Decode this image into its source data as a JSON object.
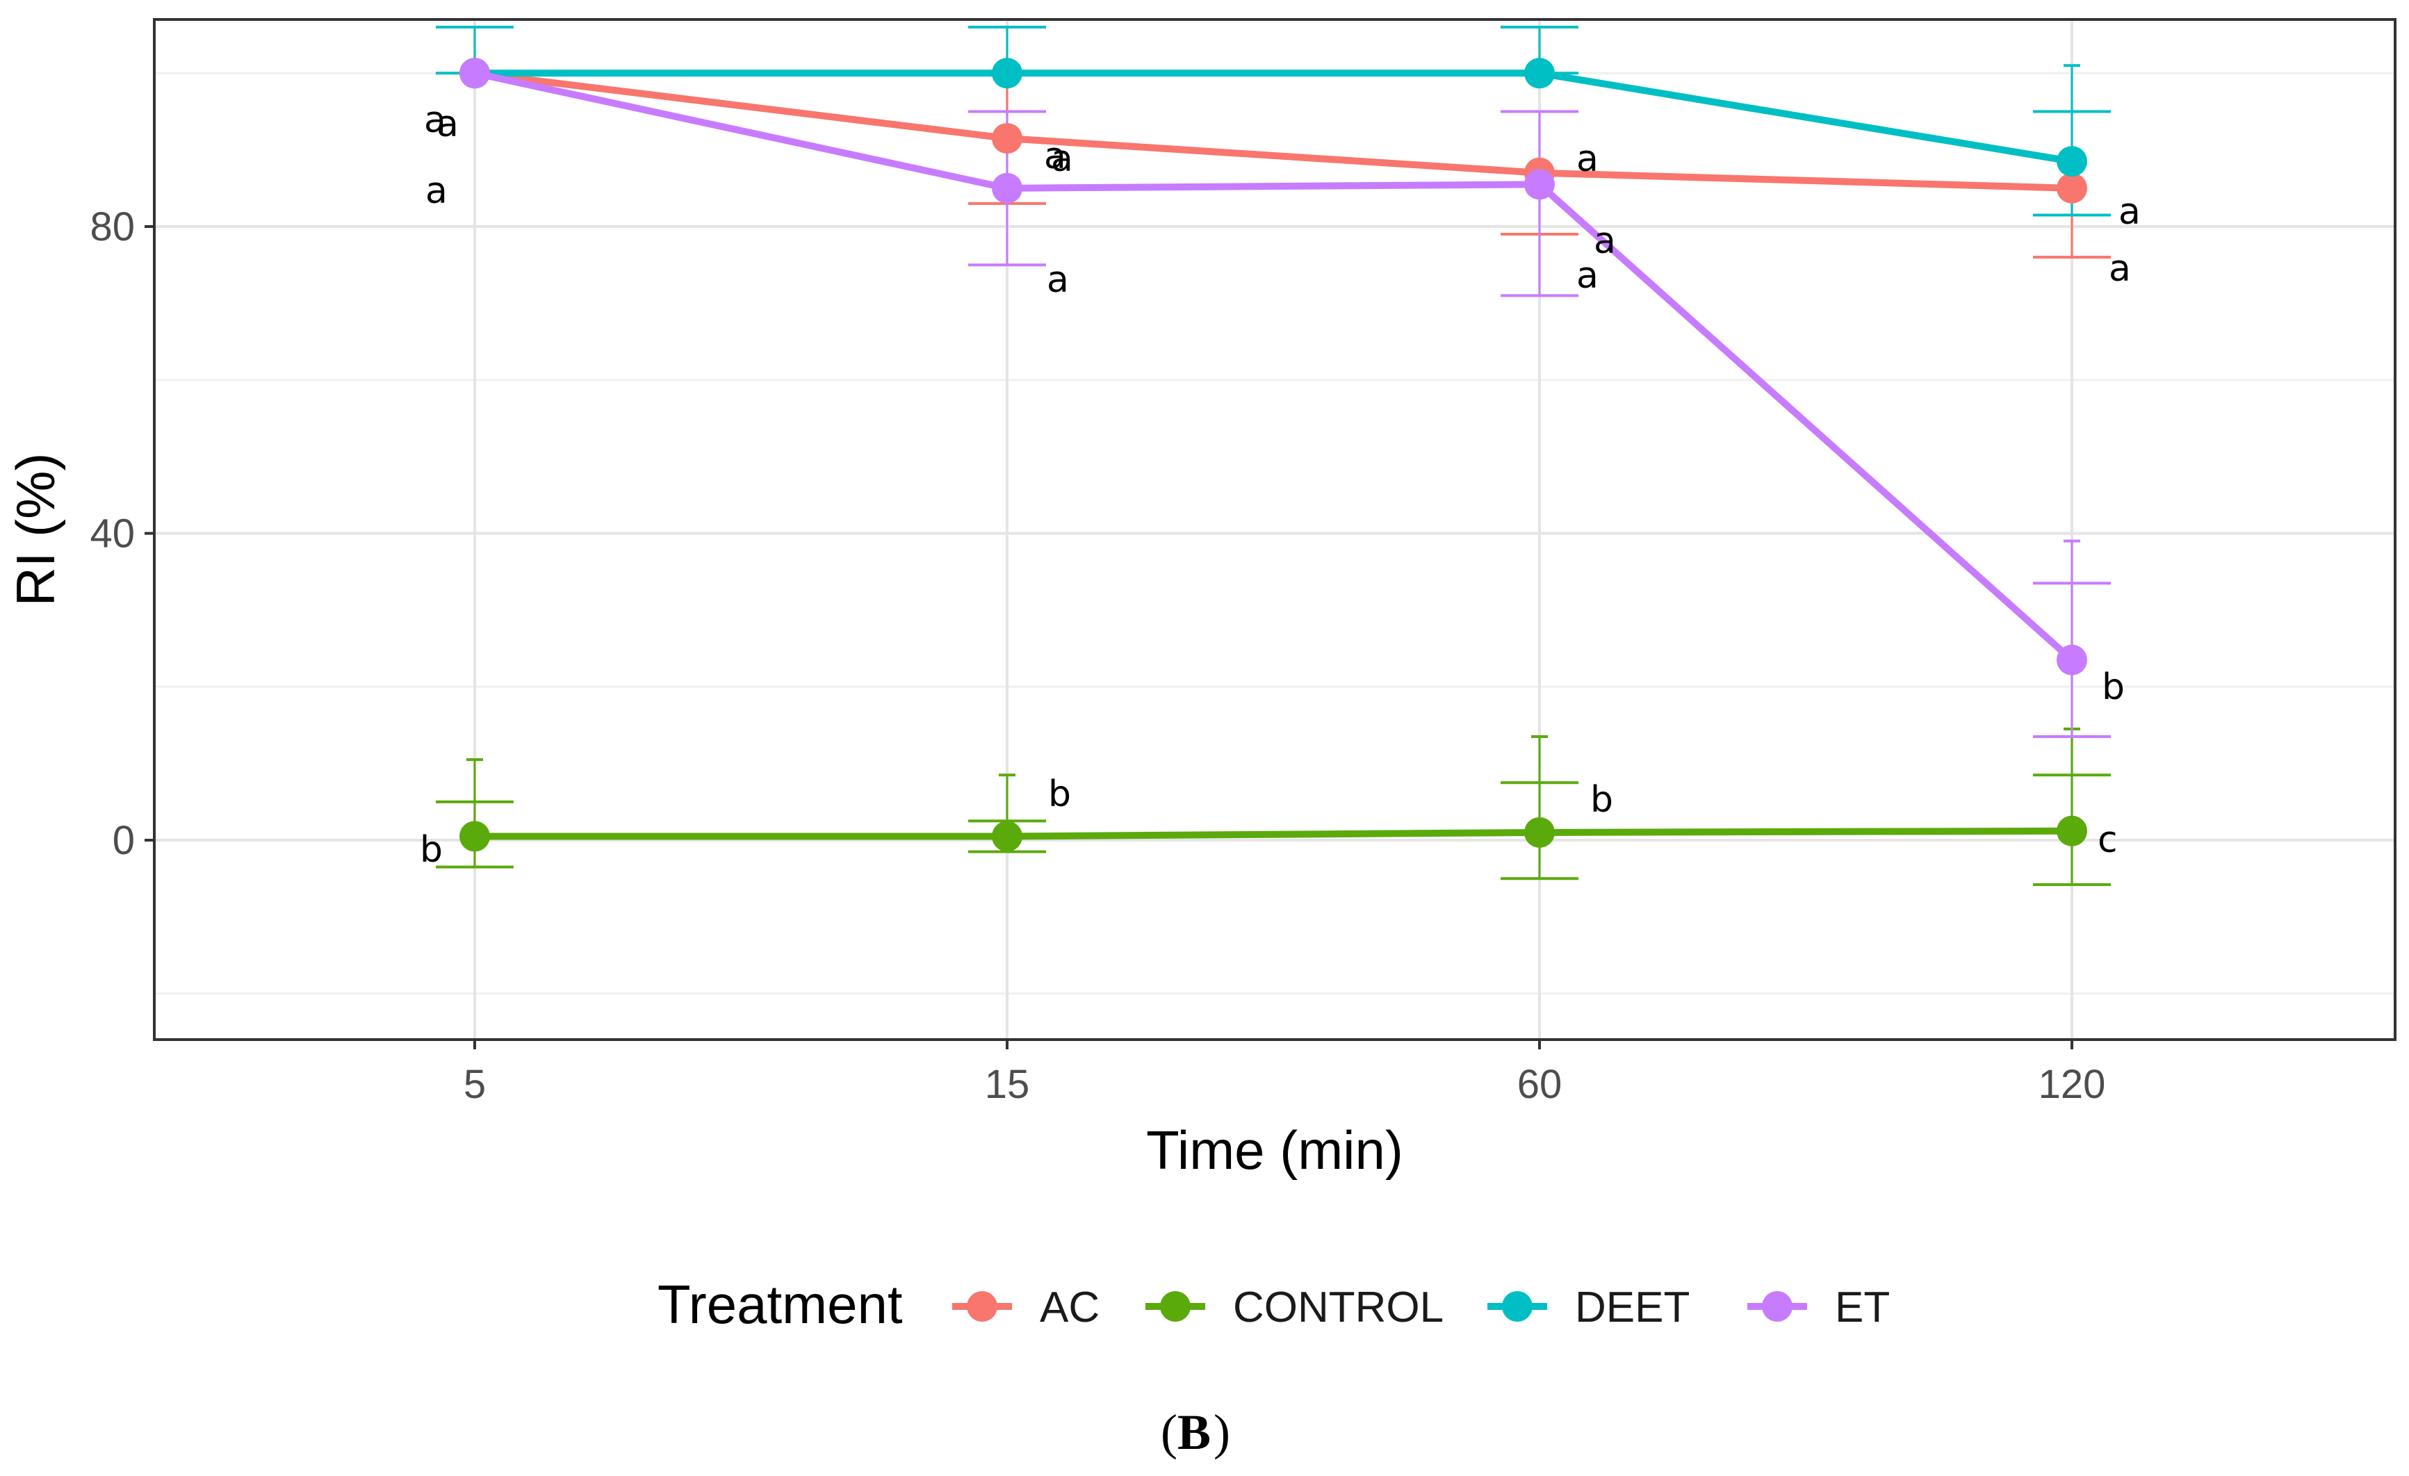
{
  "chart_data": {
    "type": "line",
    "title": "",
    "xlabel": "Time (min)",
    "ylabel": "RI (%)",
    "categories": [
      "5",
      "15",
      "60",
      "120"
    ],
    "y_ticks": [
      "0",
      "40",
      "80"
    ],
    "ylim": [
      -26,
      107
    ],
    "grid": true,
    "legend_title": "Treatment",
    "legend_position": "bottom",
    "panel_label": "B",
    "series": [
      {
        "name": "AC",
        "color": "#F8766D",
        "values": [
          100,
          91.5,
          87,
          85
        ],
        "error_low": [
          100,
          83,
          79,
          76
        ],
        "error_high": [
          100,
          100,
          95,
          95
        ],
        "letters": [
          "a",
          "a",
          "a",
          "a"
        ]
      },
      {
        "name": "CONTROL",
        "color": "#5BAA0C",
        "values": [
          0.5,
          0.5,
          1,
          1.2
        ],
        "error_low": [
          -3.5,
          -1.5,
          -5,
          -5.8
        ],
        "error_high": [
          5,
          2.5,
          7.5,
          8.5
        ],
        "error_cap_high": [
          10.5,
          8.5,
          13.5,
          14.5
        ],
        "letters": [
          "b",
          "b",
          "b",
          "c"
        ]
      },
      {
        "name": "DEET",
        "color": "#00BFC4",
        "values": [
          100,
          100,
          100,
          88.5
        ],
        "error_low": [
          100,
          100,
          100,
          81.5
        ],
        "error_high": [
          106,
          106,
          106,
          95
        ],
        "error_cap_high": [
          106,
          106,
          106,
          101
        ],
        "letters": [
          "a",
          "a",
          "a",
          "a"
        ]
      },
      {
        "name": "ET",
        "color": "#C77CFF",
        "values": [
          100,
          85,
          85.5,
          23.5
        ],
        "error_low": [
          100,
          75,
          71,
          13.5
        ],
        "error_high": [
          100,
          95,
          95,
          33.5
        ],
        "error_cap_high": [
          null,
          null,
          null,
          39
        ],
        "letters": [
          "a",
          "a",
          "a",
          "b"
        ]
      }
    ]
  }
}
